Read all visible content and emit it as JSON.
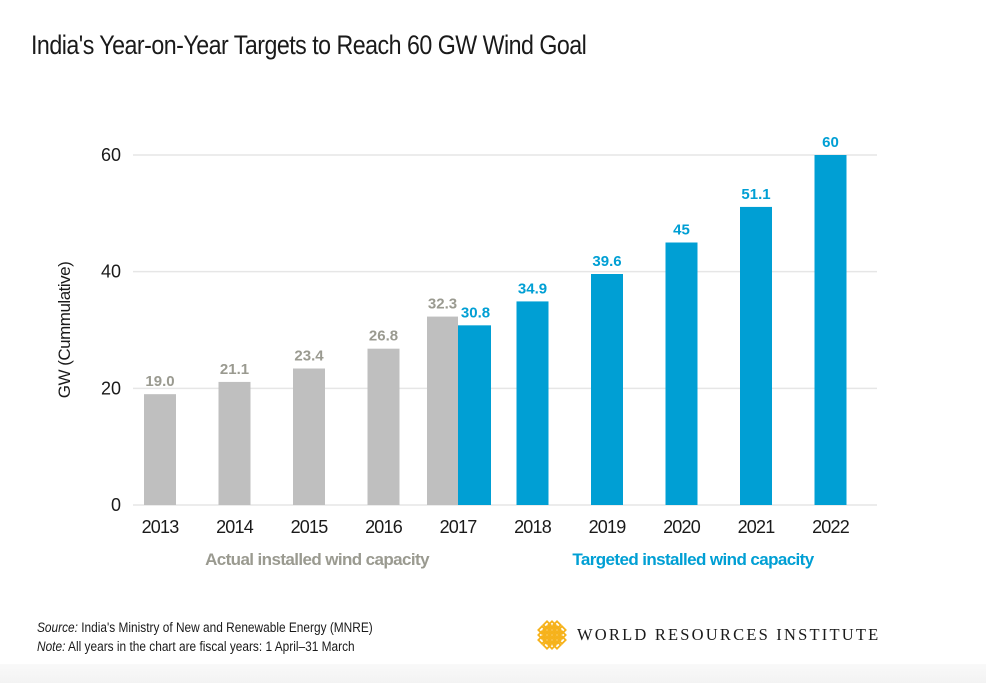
{
  "title": "India's Year-on-Year Targets to Reach 60 GW Wind Goal",
  "colors": {
    "actual": "#bfbfbf",
    "actual_label": "#9a9a90",
    "target": "#009fd4",
    "grid": "#e6e6e6",
    "text": "#1a1a1a",
    "logo": "#f6b21b"
  },
  "chart_data": {
    "type": "bar",
    "title": "India's Year-on-Year Targets to Reach 60 GW Wind Goal",
    "xlabel": "",
    "ylabel": "GW (Cummulative)",
    "ylim": [
      0,
      60
    ],
    "yticks": [
      0,
      20,
      40,
      60
    ],
    "grid": true,
    "categories": [
      "2013",
      "2014",
      "2015",
      "2016",
      "2017",
      "2018",
      "2019",
      "2020",
      "2021",
      "2022"
    ],
    "series": [
      {
        "name": "Actual installed wind capacity",
        "values": [
          19.0,
          21.1,
          23.4,
          26.8,
          32.3,
          null,
          null,
          null,
          null,
          null
        ],
        "labels": [
          "19.0",
          "21.1",
          "23.4",
          "26.8",
          "32.3",
          null,
          null,
          null,
          null,
          null
        ]
      },
      {
        "name": "Targeted installed wind capacity",
        "values": [
          null,
          null,
          null,
          null,
          30.8,
          34.9,
          39.6,
          45,
          51.1,
          60
        ],
        "labels": [
          null,
          null,
          null,
          null,
          "30.8",
          "34.9",
          "39.6",
          "45",
          "51.1",
          "60"
        ]
      }
    ],
    "legend": [
      {
        "label": "Actual installed wind capacity",
        "placement": "bottom-left"
      },
      {
        "label": "Targeted installed wind capacity",
        "placement": "bottom-right"
      }
    ]
  },
  "footer": {
    "source_label": "Source:",
    "source_text": " India's Ministry of New and Renewable Energy (MNRE)",
    "note_label": "Note:",
    "note_text": " All years in the chart are fiscal years: 1 April–31 March"
  },
  "logo": {
    "icon": "wri-knot-icon",
    "text": "WORLD RESOURCES INSTITUTE"
  }
}
